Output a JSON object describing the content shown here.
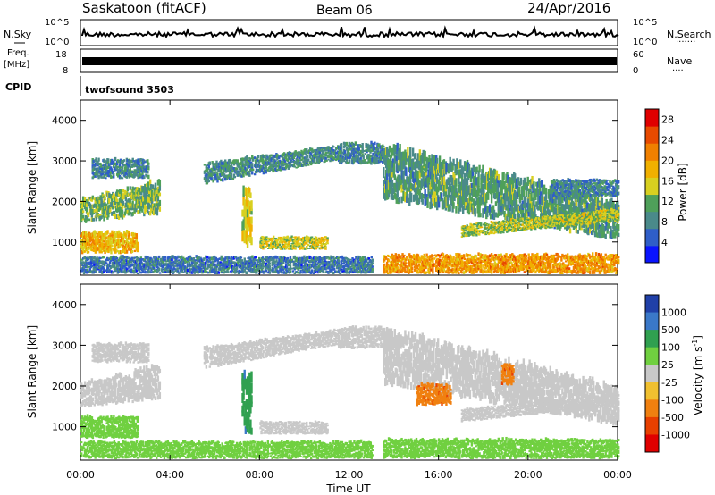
{
  "header": {
    "station": "Saskatoon (fitACF)",
    "beam": "Beam 06",
    "date": "24/Apr/2016"
  },
  "noise_panel": {
    "left_label": "N.Sky",
    "right_label": "N.Search",
    "right_marker": "·······",
    "left_ticks": [
      "10^5",
      "10^0"
    ],
    "right_ticks": [
      "10^5",
      "10^0"
    ]
  },
  "freq_panel": {
    "left_label_top": "Freq.",
    "left_label_unit": "[MHz]",
    "right_label": "Nave",
    "right_marker": "····",
    "left_ticks": [
      "18",
      "8"
    ],
    "right_ticks": [
      "60",
      "0"
    ]
  },
  "cpid_panel": {
    "label": "CPID",
    "value": "twofsound 3503"
  },
  "chart_data": [
    {
      "type": "heatmap",
      "name": "power",
      "ylabel": "Slant Range [km]",
      "ylim": [
        180,
        4500
      ],
      "xlim": [
        0,
        24
      ],
      "y_ticks": [
        "1000",
        "2000",
        "3000",
        "4000"
      ],
      "colorbar": {
        "label": "Power [dB]",
        "ticks": [
          "4",
          "8",
          "12",
          "16",
          "20",
          "24",
          "28"
        ],
        "tick_values": [
          4,
          8,
          12,
          16,
          20,
          24,
          28
        ],
        "range": [
          0,
          30
        ],
        "colors": [
          "#0a14ff",
          "#2f5ec8",
          "#4a8a8a",
          "#4fa05a",
          "#d8d020",
          "#f0b000",
          "#f08000",
          "#e84a00",
          "#e00000"
        ]
      },
      "bands": [
        {
          "t0": 0.0,
          "t1": 3.5,
          "r0": 1450,
          "r1": 1650,
          "r2": 2000,
          "r3": 2450,
          "value": 12
        },
        {
          "t0": 0.0,
          "t1": 2.5,
          "r0": 700,
          "r1": 700,
          "r2": 1200,
          "r3": 1200,
          "value": 18
        },
        {
          "t0": 0.5,
          "t1": 3.0,
          "r0": 2550,
          "r1": 2550,
          "r2": 3000,
          "r3": 3000,
          "value": 8
        },
        {
          "t0": 5.5,
          "t1": 11.5,
          "r0": 2400,
          "r1": 3000,
          "r2": 2900,
          "r3": 3350,
          "value": 9
        },
        {
          "t0": 7.2,
          "t1": 7.6,
          "r0": 800,
          "r1": 800,
          "r2": 2200,
          "r3": 2200,
          "value": 16
        },
        {
          "t0": 8.0,
          "t1": 11.0,
          "r0": 800,
          "r1": 800,
          "r2": 1100,
          "r3": 1100,
          "value": 15
        },
        {
          "t0": 11.5,
          "t1": 13.5,
          "r0": 2900,
          "r1": 2900,
          "r2": 3400,
          "r3": 3400,
          "value": 8
        },
        {
          "t0": 13.5,
          "t1": 24.0,
          "r0": 2000,
          "r1": 1000,
          "r2": 3300,
          "r3": 1900,
          "value": 10
        },
        {
          "t0": 17.0,
          "t1": 24.0,
          "r0": 1100,
          "r1": 1500,
          "r2": 1400,
          "r3": 1800,
          "value": 14
        },
        {
          "t0": 13.5,
          "t1": 24.0,
          "r0": 200,
          "r1": 200,
          "r2": 650,
          "r3": 650,
          "value": 20
        },
        {
          "t0": 21.0,
          "t1": 24.0,
          "r0": 2100,
          "r1": 2100,
          "r2": 2500,
          "r3": 2500,
          "value": 8
        },
        {
          "t0": 0.0,
          "t1": 13.0,
          "r0": 200,
          "r1": 200,
          "r2": 600,
          "r3": 600,
          "value": 7
        }
      ]
    },
    {
      "type": "heatmap",
      "name": "velocity",
      "ylabel": "Slant Range [km]",
      "ylim": [
        180,
        4500
      ],
      "xlim": [
        0,
        24
      ],
      "y_ticks": [
        "1000",
        "2000",
        "3000",
        "4000"
      ],
      "x_ticks": [
        "00:00",
        "04:00",
        "08:00",
        "12:00",
        "16:00",
        "20:00",
        "00:00"
      ],
      "x_tick_values": [
        0,
        4,
        8,
        12,
        16,
        20,
        24
      ],
      "xlabel": "Time UT",
      "colorbar": {
        "label": "Velocity [m s",
        "label_sup": "-1",
        "label_end": "]",
        "ticks": [
          "1000",
          "500",
          "100",
          "25",
          "-25",
          "-100",
          "-500",
          "-1000"
        ],
        "colors": [
          "#2040a8",
          "#3a78c8",
          "#30a050",
          "#70d040",
          "#c8c8c8",
          "#f0c030",
          "#f08010",
          "#e84000",
          "#e00000"
        ],
        "color_values": [
          1200,
          700,
          300,
          60,
          0,
          -60,
          -300,
          -700,
          -1200
        ]
      },
      "bands": [
        {
          "t0": 0.0,
          "t1": 3.5,
          "r0": 1450,
          "r1": 1650,
          "r2": 2000,
          "r3": 2450,
          "value": 0
        },
        {
          "t0": 0.0,
          "t1": 2.5,
          "r0": 700,
          "r1": 700,
          "r2": 1200,
          "r3": 1200,
          "value": 80
        },
        {
          "t0": 0.5,
          "t1": 3.0,
          "r0": 2550,
          "r1": 2550,
          "r2": 3000,
          "r3": 3000,
          "value": 0
        },
        {
          "t0": 5.5,
          "t1": 11.5,
          "r0": 2400,
          "r1": 3000,
          "r2": 2900,
          "r3": 3350,
          "value": 0
        },
        {
          "t0": 7.2,
          "t1": 7.6,
          "r0": 800,
          "r1": 800,
          "r2": 2200,
          "r3": 2200,
          "value": 400
        },
        {
          "t0": 8.0,
          "t1": 11.0,
          "r0": 800,
          "r1": 800,
          "r2": 1100,
          "r3": 1100,
          "value": 0
        },
        {
          "t0": 11.5,
          "t1": 13.5,
          "r0": 2900,
          "r1": 2900,
          "r2": 3400,
          "r3": 3400,
          "value": 0
        },
        {
          "t0": 13.5,
          "t1": 24.0,
          "r0": 2000,
          "r1": 1000,
          "r2": 3300,
          "r3": 1900,
          "value": 0
        },
        {
          "t0": 15.0,
          "t1": 16.5,
          "r0": 1500,
          "r1": 1500,
          "r2": 2000,
          "r3": 2000,
          "value": -400
        },
        {
          "t0": 18.8,
          "t1": 19.3,
          "r0": 2000,
          "r1": 2000,
          "r2": 2500,
          "r3": 2500,
          "value": -400
        },
        {
          "t0": 17.0,
          "t1": 24.0,
          "r0": 1100,
          "r1": 1500,
          "r2": 1400,
          "r3": 1800,
          "value": 0
        },
        {
          "t0": 13.5,
          "t1": 24.0,
          "r0": 200,
          "r1": 200,
          "r2": 650,
          "r3": 650,
          "value": 50
        },
        {
          "t0": 0.0,
          "t1": 13.0,
          "r0": 200,
          "r1": 200,
          "r2": 600,
          "r3": 600,
          "value": 60
        }
      ]
    }
  ]
}
